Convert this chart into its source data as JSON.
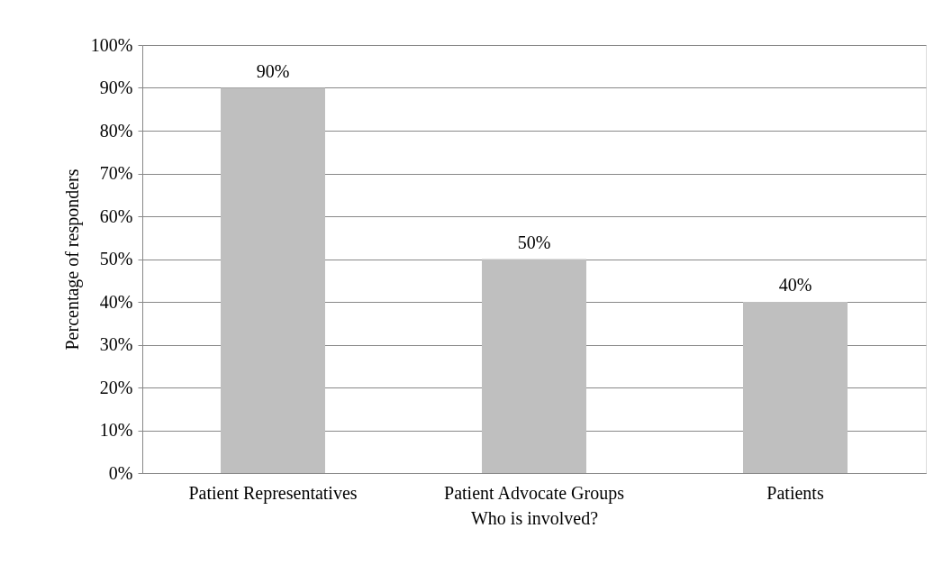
{
  "chart_data": {
    "type": "bar",
    "xlabel": "Who is involved?",
    "ylabel": "Percentage of responders",
    "categories": [
      "Patient Representatives",
      "Patient Advocate Groups",
      "Patients"
    ],
    "values": [
      90,
      50,
      40
    ],
    "color": "#bfbfbf",
    "value_labels": [
      "90%",
      "50%",
      "40%"
    ],
    "ylim": [
      0,
      100
    ],
    "yticks": [
      {
        "value": 0,
        "label": "0%"
      },
      {
        "value": 10,
        "label": "10%"
      },
      {
        "value": 20,
        "label": "20%"
      },
      {
        "value": 30,
        "label": "30%"
      },
      {
        "value": 40,
        "label": "40%"
      },
      {
        "value": 50,
        "label": "50%"
      },
      {
        "value": 60,
        "label": "60%"
      },
      {
        "value": 70,
        "label": "70%"
      },
      {
        "value": 80,
        "label": "80%"
      },
      {
        "value": 90,
        "label": "90%"
      },
      {
        "value": 100,
        "label": "100%"
      }
    ],
    "grid": "y"
  }
}
